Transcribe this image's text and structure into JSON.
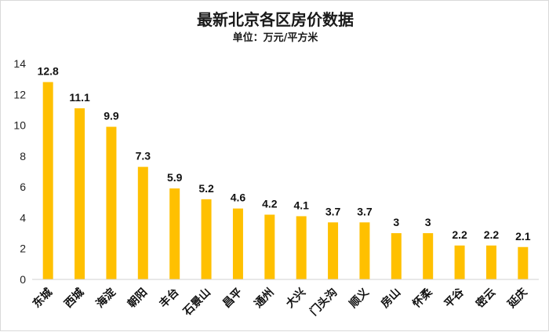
{
  "chart_data": {
    "type": "bar",
    "title": "最新北京各区房价数据",
    "subtitle": "单位：万元/平方米",
    "categories": [
      "东城",
      "西城",
      "海淀",
      "朝阳",
      "丰台",
      "石景山",
      "昌平",
      "通州",
      "大兴",
      "门头沟",
      "顺义",
      "房山",
      "怀柔",
      "平谷",
      "密云",
      "延庆"
    ],
    "values": [
      12.8,
      11.1,
      9.9,
      7.3,
      5.9,
      5.2,
      4.6,
      4.2,
      4.1,
      3.7,
      3.7,
      3,
      3,
      2.2,
      2.2,
      2.1
    ],
    "value_labels": [
      "12.8",
      "11.1",
      "9.9",
      "7.3",
      "5.9",
      "5.2",
      "4.6",
      "4.2",
      "4.1",
      "3.7",
      "3.7",
      "3",
      "3",
      "2.2",
      "2.2",
      "2.1"
    ],
    "ylim": [
      0,
      14
    ],
    "yticks": [
      0,
      2,
      4,
      6,
      8,
      10,
      12,
      14
    ],
    "grid": false,
    "legend": "none",
    "bar_color": "#FFC000"
  }
}
